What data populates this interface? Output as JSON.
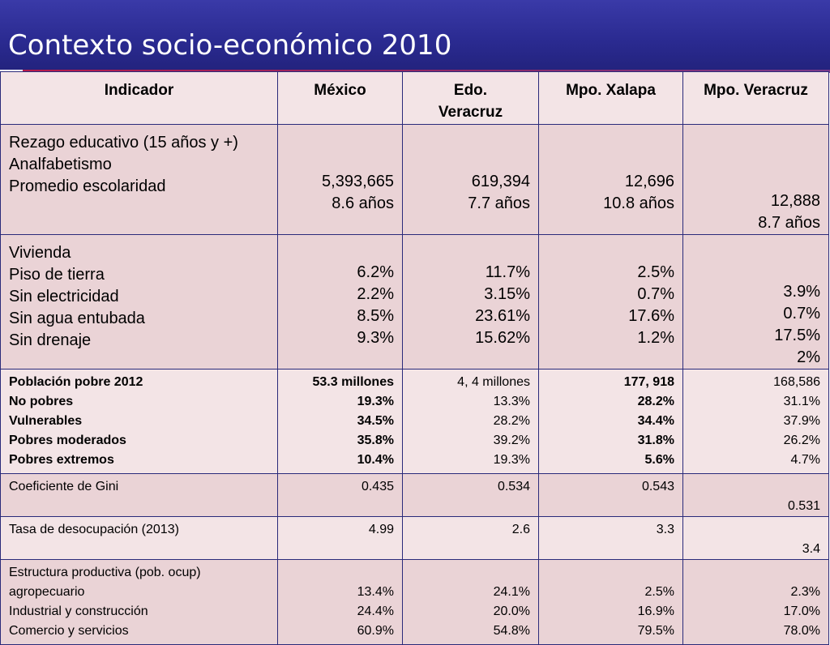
{
  "title": "Contexto socio-económico 2010",
  "colors": {
    "title_bg": "#2a2a90",
    "accent": "#b51a4a",
    "row_light": "#f3e4e6",
    "row_dark": "#ead3d6",
    "border": "#2a2a7a"
  },
  "headers": [
    "Indicador",
    "México",
    "Edo. Veracruz",
    "Mpo. Xalapa",
    "Mpo. Veracruz"
  ],
  "rows": [
    {
      "label_lines": [
        "Rezago educativo (15 años y +)",
        "Analfabetismo",
        "Promedio escolaridad"
      ],
      "values": [
        [
          "",
          "",
          "5,393,665",
          "8.6 años"
        ],
        [
          "",
          "",
          "619,394",
          "7.7 años"
        ],
        [
          "",
          "",
          "12,696",
          "10.8 años"
        ],
        [
          "",
          "",
          "",
          "12,888",
          "8.7 años"
        ]
      ]
    },
    {
      "label_lines": [
        "Vivienda",
        "Piso de tierra",
        "Sin electricidad",
        "Sin agua entubada",
        "Sin drenaje"
      ],
      "values": [
        [
          "",
          "6.2%",
          "2.2%",
          "8.5%",
          "9.3%"
        ],
        [
          "",
          "11.7%",
          "3.15%",
          "23.61%",
          "15.62%"
        ],
        [
          "",
          "2.5%",
          "0.7%",
          "17.6%",
          "1.2%"
        ],
        [
          "",
          "",
          "3.9%",
          "0.7%",
          "17.5%",
          "2%"
        ]
      ]
    },
    {
      "label_lines": [
        "Población pobre 2012",
        "No pobres",
        "Vulnerables",
        "Pobres moderados",
        "Pobres extremos"
      ],
      "values": [
        [
          "53.3 millones",
          "19.3%",
          "34.5%",
          "35.8%",
          "10.4%"
        ],
        [
          "4, 4 millones",
          "13.3%",
          "28.2%",
          "39.2%",
          "19.3%"
        ],
        [
          "177, 918",
          "28.2%",
          "34.4%",
          "31.8%",
          "5.6%"
        ],
        [
          "168,586",
          "31.1%",
          "37.9%",
          "26.2%",
          "4.7%"
        ]
      ]
    },
    {
      "label_lines": [
        "Coeficiente de Gini"
      ],
      "values": [
        [
          "0.435"
        ],
        [
          "0.534"
        ],
        [
          "0.543"
        ],
        [
          "",
          "0.531"
        ]
      ]
    },
    {
      "label_lines": [
        "Tasa de desocupación (2013)"
      ],
      "values": [
        [
          "4.99"
        ],
        [
          "2.6"
        ],
        [
          "3.3"
        ],
        [
          "",
          "3.4"
        ]
      ]
    },
    {
      "label_lines": [
        "Estructura productiva (pob. ocup)",
        "agropecuario",
        "Industrial y construcción",
        "Comercio y servicios"
      ],
      "values": [
        [
          "",
          "13.4%",
          "24.4%",
          "60.9%"
        ],
        [
          "",
          "24.1%",
          "20.0%",
          "54.8%"
        ],
        [
          "",
          "2.5%",
          "16.9%",
          "79.5%"
        ],
        [
          "",
          "2.3%",
          "17.0%",
          "78.0%"
        ]
      ]
    }
  ]
}
